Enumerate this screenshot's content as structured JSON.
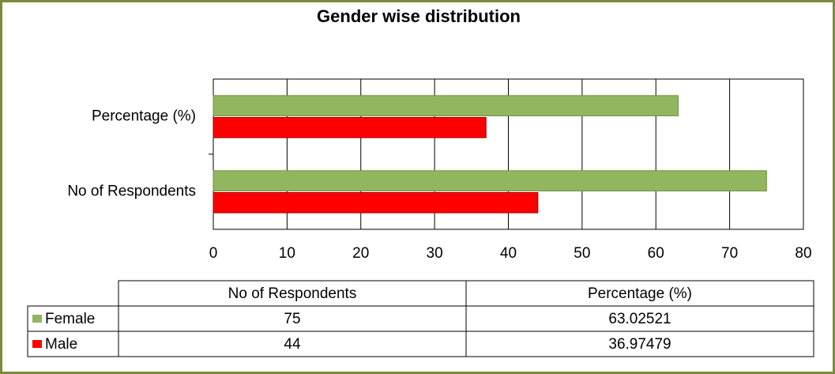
{
  "chart_data": {
    "type": "bar",
    "orientation": "horizontal",
    "title": "Gender wise distribution",
    "categories": [
      "No of Respondents",
      "Percentage (%)"
    ],
    "series": [
      {
        "name": "Female",
        "color": "#92b55f",
        "values": [
          75,
          63.02521
        ]
      },
      {
        "name": "Male",
        "color": "#ff0000",
        "values": [
          44,
          36.97479
        ]
      }
    ],
    "xlim": [
      0,
      80
    ],
    "xticks": [
      0,
      10,
      20,
      30,
      40,
      50,
      60,
      70,
      80
    ],
    "grid": true,
    "data_table": true
  }
}
